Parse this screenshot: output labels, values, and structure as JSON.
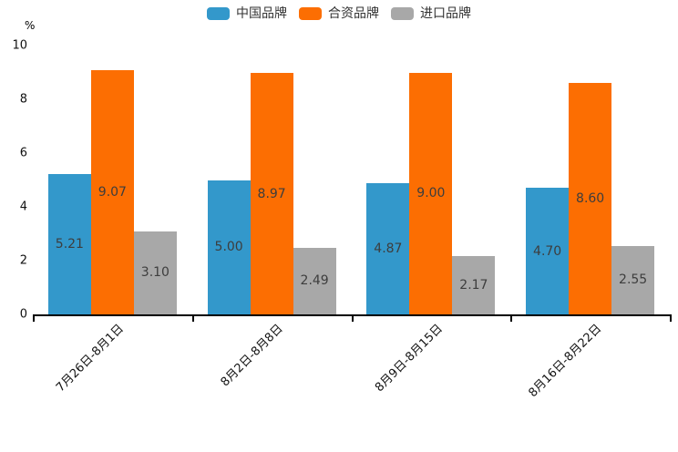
{
  "chart_data": {
    "type": "bar",
    "title": "",
    "ylabel": "%",
    "ylim": [
      0,
      10
    ],
    "yticks": [
      0,
      2,
      4,
      6,
      8,
      10
    ],
    "grid": false,
    "legend_position": "top-center",
    "categories": [
      "7月26日-8月1日",
      "8月2日-8月8日",
      "8月9日-8月15日",
      "8月16日-8月22日"
    ],
    "series": [
      {
        "name": "中国品牌",
        "color": "#3398cb",
        "values": [
          5.21,
          5.0,
          4.87,
          4.7
        ],
        "labels": [
          "5.21",
          "5.00",
          "4.87",
          "4.70"
        ]
      },
      {
        "name": "合资品牌",
        "color": "#fc6e02",
        "values": [
          9.07,
          8.97,
          9.0,
          8.6
        ],
        "labels": [
          "9.07",
          "8.97",
          "9.00",
          "8.60"
        ]
      },
      {
        "name": "进口品牌",
        "color": "#a8a8a8",
        "values": [
          3.1,
          2.49,
          2.17,
          2.55
        ],
        "labels": [
          "3.10",
          "2.49",
          "2.17",
          "2.55"
        ]
      }
    ],
    "value_label_color": "#3d3d3d",
    "axis_color": "#000000"
  }
}
